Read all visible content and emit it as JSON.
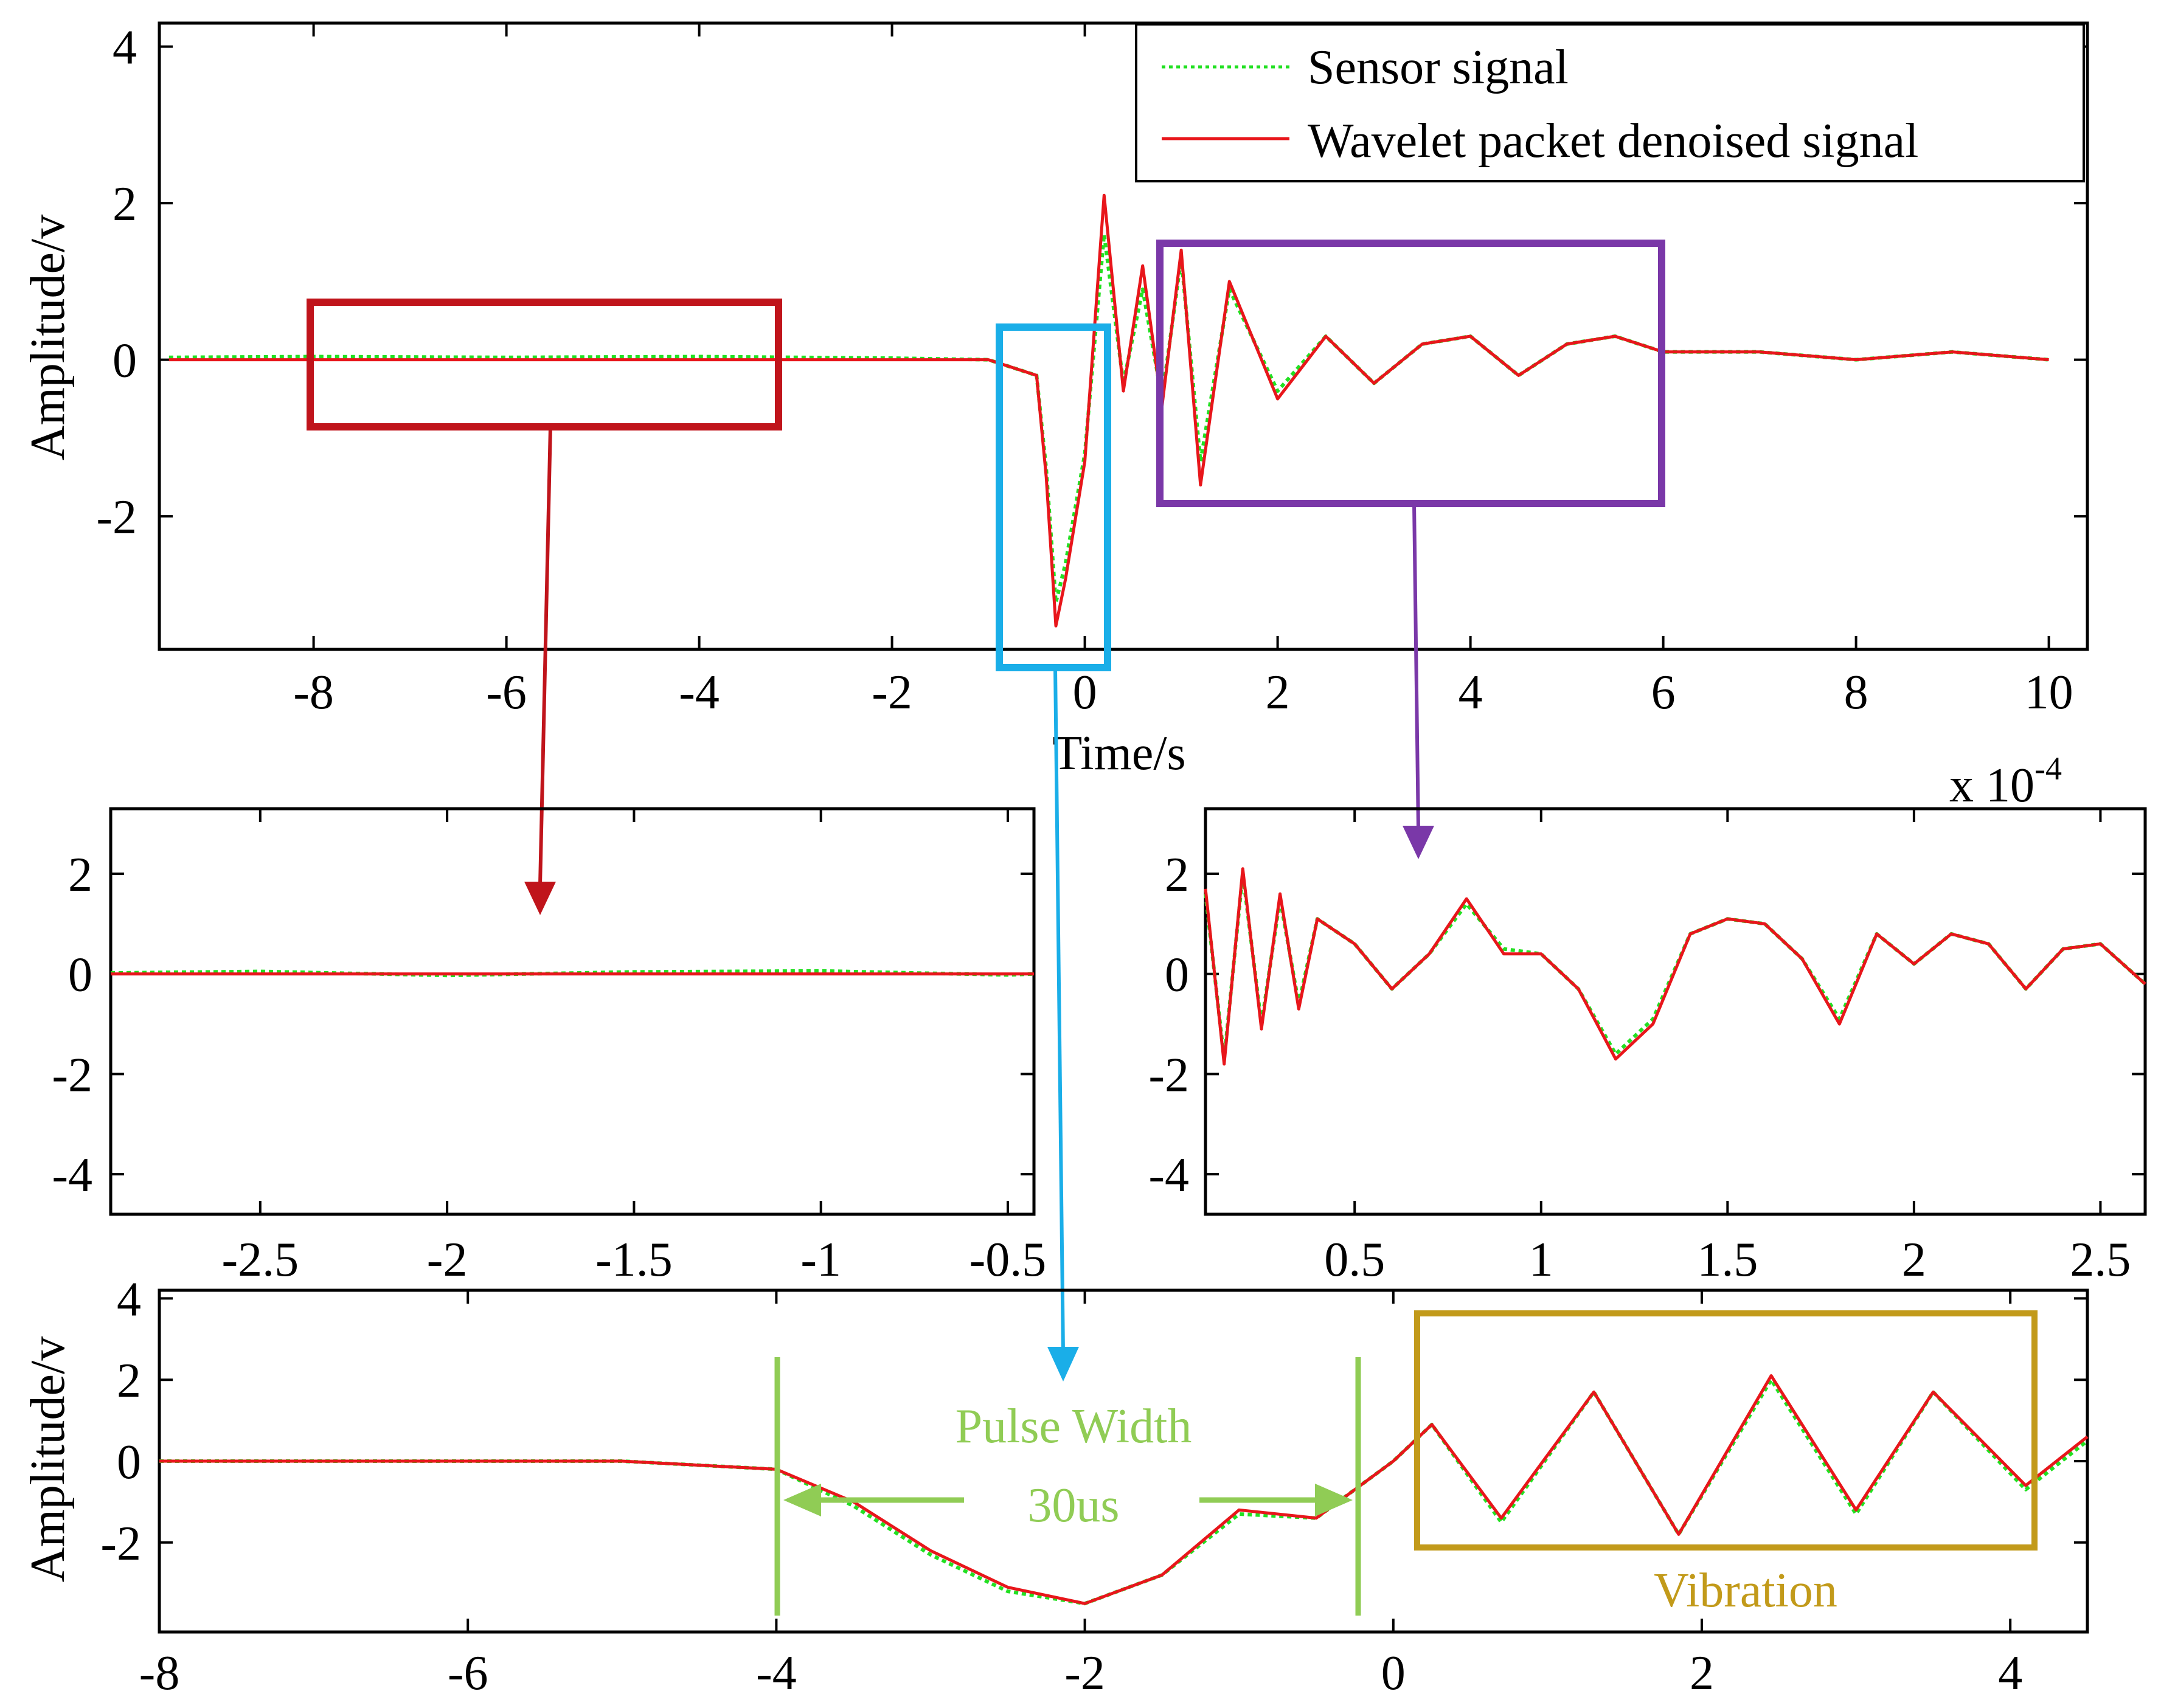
{
  "chart_data": [
    {
      "id": "main",
      "type": "line",
      "title": "",
      "xlabel": "Time/s",
      "ylabel": "Amplitude/v",
      "xlim": [
        -9.6,
        10.4
      ],
      "ylim": [
        -3.7,
        4.3
      ],
      "xticks": [
        -8,
        -6,
        -4,
        -2,
        0,
        2,
        4,
        6,
        8,
        10
      ],
      "yticks": [
        -2,
        0,
        2,
        4
      ],
      "legend": {
        "position": "top-right",
        "entries": [
          "Sensor signal",
          "Wavelet packet denoised signal"
        ]
      },
      "series": [
        {
          "name": "Sensor signal",
          "style": "dotted",
          "color": "#22e022",
          "x": [
            -9.5,
            -8,
            -6,
            -4,
            -2,
            -1,
            -0.5,
            -0.4,
            -0.3,
            -0.2,
            0,
            0.2,
            0.4,
            0.6,
            0.8,
            1.0,
            1.2,
            1.5,
            2,
            2.5,
            3,
            3.5,
            4,
            4.5,
            5,
            5.5,
            6,
            7,
            8,
            9,
            10
          ],
          "y": [
            0.03,
            0.04,
            0.03,
            0.04,
            0.02,
            0.0,
            -0.2,
            -1.4,
            -3.1,
            -2.6,
            -1.2,
            1.6,
            -0.3,
            0.9,
            -0.5,
            1.3,
            -1.3,
            0.9,
            -0.4,
            0.3,
            -0.3,
            0.2,
            0.3,
            -0.2,
            0.2,
            0.3,
            0.1,
            0.1,
            0.0,
            0.1,
            0.0
          ]
        },
        {
          "name": "Wavelet packet denoised signal",
          "style": "solid",
          "color": "#e8161b",
          "x": [
            -9.5,
            -8,
            -6,
            -4,
            -2,
            -1,
            -0.5,
            -0.4,
            -0.3,
            -0.2,
            0,
            0.2,
            0.4,
            0.6,
            0.8,
            1.0,
            1.2,
            1.5,
            2,
            2.5,
            3,
            3.5,
            4,
            4.5,
            5,
            5.5,
            6,
            7,
            8,
            9,
            10
          ],
          "y": [
            0.0,
            0.0,
            0.0,
            0.0,
            0.0,
            0.0,
            -0.2,
            -1.5,
            -3.4,
            -2.8,
            -1.3,
            2.1,
            -0.4,
            1.2,
            -0.6,
            1.4,
            -1.6,
            1.0,
            -0.5,
            0.3,
            -0.3,
            0.2,
            0.3,
            -0.2,
            0.2,
            0.3,
            0.1,
            0.1,
            0.0,
            0.1,
            0.0
          ]
        }
      ]
    },
    {
      "id": "zoom-left",
      "type": "line",
      "xlabel": "",
      "ylabel": "",
      "xlim": [
        -2.9,
        -0.43
      ],
      "ylim": [
        -4.8,
        3.3
      ],
      "xticks": [
        -2.5,
        -2,
        -1.5,
        -1,
        -0.5
      ],
      "yticks": [
        -4,
        -2,
        0,
        2
      ],
      "series": [
        {
          "name": "Sensor signal",
          "style": "dotted",
          "color": "#22e022",
          "x": [
            -2.9,
            -2.5,
            -2.0,
            -1.5,
            -1.0,
            -0.5,
            -0.43
          ],
          "y": [
            0.02,
            0.05,
            -0.03,
            0.04,
            0.06,
            -0.02,
            0.0
          ]
        },
        {
          "name": "Wavelet packet denoised signal",
          "style": "solid",
          "color": "#e8161b",
          "x": [
            -2.9,
            -2.5,
            -2.0,
            -1.5,
            -1.0,
            -0.5,
            -0.43
          ],
          "y": [
            0.0,
            0.0,
            0.0,
            0.0,
            0.0,
            0.0,
            0.0
          ]
        }
      ]
    },
    {
      "id": "zoom-right",
      "type": "line",
      "xlabel": "",
      "ylabel": "",
      "multiplier": "x 10-4",
      "multiplier_base": "x 10",
      "multiplier_exp": "-4",
      "xlim": [
        0.1,
        2.62
      ],
      "ylim": [
        -4.8,
        3.3
      ],
      "xticks": [
        0.5,
        1,
        1.5,
        2,
        2.5
      ],
      "yticks": [
        -4,
        -2,
        0,
        2
      ],
      "series": [
        {
          "name": "Sensor signal",
          "style": "dotted",
          "color": "#22e022",
          "x": [
            0.1,
            0.15,
            0.2,
            0.25,
            0.3,
            0.35,
            0.4,
            0.5,
            0.6,
            0.7,
            0.8,
            0.9,
            1.0,
            1.1,
            1.2,
            1.3,
            1.4,
            1.5,
            1.6,
            1.7,
            1.8,
            1.9,
            2.0,
            2.1,
            2.2,
            2.3,
            2.4,
            2.5,
            2.62
          ],
          "y": [
            1.6,
            -1.7,
            2.0,
            -1.0,
            1.5,
            -0.6,
            1.1,
            0.6,
            -0.3,
            0.4,
            1.4,
            0.5,
            0.4,
            -0.3,
            -1.6,
            -0.9,
            0.8,
            1.1,
            1.0,
            0.3,
            -0.9,
            0.8,
            0.2,
            0.8,
            0.6,
            -0.3,
            0.5,
            0.6,
            -0.2
          ]
        },
        {
          "name": "Wavelet packet denoised signal",
          "style": "solid",
          "color": "#e8161b",
          "x": [
            0.1,
            0.15,
            0.2,
            0.25,
            0.3,
            0.35,
            0.4,
            0.5,
            0.6,
            0.7,
            0.8,
            0.9,
            1.0,
            1.1,
            1.2,
            1.3,
            1.4,
            1.5,
            1.6,
            1.7,
            1.8,
            1.9,
            2.0,
            2.1,
            2.2,
            2.3,
            2.4,
            2.5,
            2.62
          ],
          "y": [
            1.7,
            -1.8,
            2.1,
            -1.1,
            1.6,
            -0.7,
            1.1,
            0.6,
            -0.3,
            0.4,
            1.5,
            0.4,
            0.4,
            -0.3,
            -1.7,
            -1.0,
            0.8,
            1.1,
            1.0,
            0.3,
            -1.0,
            0.8,
            0.2,
            0.8,
            0.6,
            -0.3,
            0.5,
            0.6,
            -0.2
          ]
        }
      ]
    },
    {
      "id": "pulse",
      "type": "line",
      "xlabel": "",
      "ylabel": "Amplitude/v",
      "xlim": [
        -8,
        4.5
      ],
      "ylim": [
        -4.2,
        4.2
      ],
      "xticks": [
        -8,
        -6,
        -4,
        -2,
        0,
        2,
        4
      ],
      "yticks": [
        -2,
        0,
        2,
        4
      ],
      "series": [
        {
          "name": "Sensor signal",
          "style": "dotted",
          "color": "#22e022",
          "x": [
            -8,
            -6,
            -5,
            -4,
            -3.5,
            -3,
            -2.5,
            -2,
            -1.5,
            -1,
            -0.5,
            0,
            0.25,
            0.7,
            1.3,
            1.85,
            2.45,
            3.0,
            3.5,
            4.1,
            4.5
          ],
          "y": [
            0.0,
            0.0,
            0.0,
            -0.2,
            -1.1,
            -2.3,
            -3.2,
            -3.5,
            -2.8,
            -1.3,
            -1.4,
            0.0,
            0.9,
            -1.5,
            1.7,
            -1.8,
            2.0,
            -1.3,
            1.7,
            -0.7,
            0.5
          ]
        },
        {
          "name": "Wavelet packet denoised signal",
          "style": "solid",
          "color": "#e8161b",
          "x": [
            -8,
            -6,
            -5,
            -4,
            -3.5,
            -3,
            -2.5,
            -2,
            -1.5,
            -1,
            -0.5,
            0,
            0.25,
            0.7,
            1.3,
            1.85,
            2.45,
            3.0,
            3.5,
            4.1,
            4.5
          ],
          "y": [
            0.0,
            0.0,
            0.0,
            -0.2,
            -1.0,
            -2.2,
            -3.1,
            -3.5,
            -2.8,
            -1.2,
            -1.4,
            0.0,
            0.9,
            -1.4,
            1.7,
            -1.8,
            2.1,
            -1.2,
            1.7,
            -0.6,
            0.6
          ]
        }
      ],
      "annotations": {
        "pulse_label": "Pulse Width",
        "pulse_value": "30us",
        "pulse_start_x": -4,
        "pulse_end_x": -0.25,
        "vibration_label": "Vibration"
      }
    }
  ],
  "colors": {
    "sensor": "#22e022",
    "denoised": "#e8161b",
    "box_red": "#c0141b",
    "box_blue": "#1aaee8",
    "box_purple": "#7a38a8",
    "annotation_green": "#90cc55",
    "vibration_gold": "#c29a1a"
  }
}
